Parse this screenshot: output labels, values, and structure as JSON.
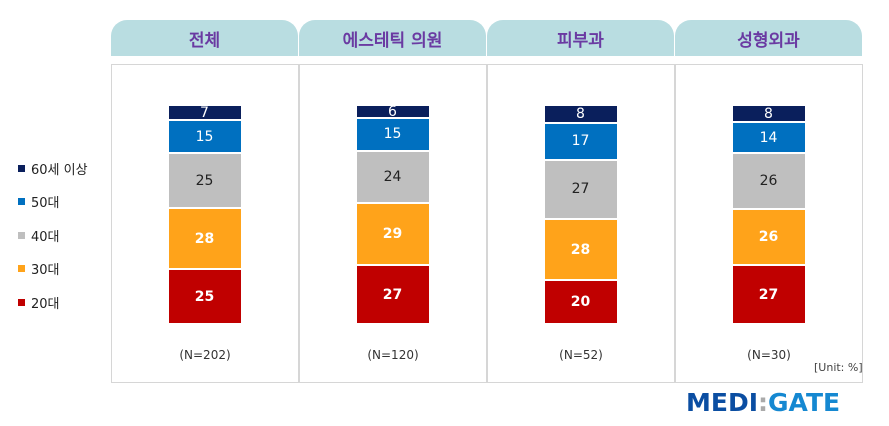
{
  "chart_data": {
    "type": "bar",
    "stacked": true,
    "unit": "[Unit: %]",
    "categories": [
      "전체",
      "에스테틱 의원",
      "피부과",
      "성형외과"
    ],
    "n_labels": [
      "(N=202)",
      "(N=120)",
      "(N=52)",
      "(N=30)"
    ],
    "series": [
      {
        "name": "20대",
        "color": "#c00000",
        "label_color": "#ffffff",
        "bold": true,
        "values": [
          25,
          27,
          20,
          27
        ]
      },
      {
        "name": "30대",
        "color": "#ffa31a",
        "label_color": "#ffffff",
        "bold": true,
        "values": [
          28,
          29,
          28,
          26
        ]
      },
      {
        "name": "40대",
        "color": "#bfbfbf",
        "label_color": "#222222",
        "bold": false,
        "values": [
          25,
          24,
          27,
          26
        ]
      },
      {
        "name": "50대",
        "color": "#0070c0",
        "label_color": "#ffffff",
        "bold": false,
        "values": [
          15,
          15,
          17,
          14
        ]
      },
      {
        "name": "60세 이상",
        "color": "#0a1f5c",
        "label_color": "#ffffff",
        "bold": false,
        "values": [
          7,
          6,
          8,
          8
        ]
      }
    ],
    "legend_position": "left"
  },
  "logo": {
    "left": "MEDI",
    "sep": ":",
    "right": "GATE"
  }
}
